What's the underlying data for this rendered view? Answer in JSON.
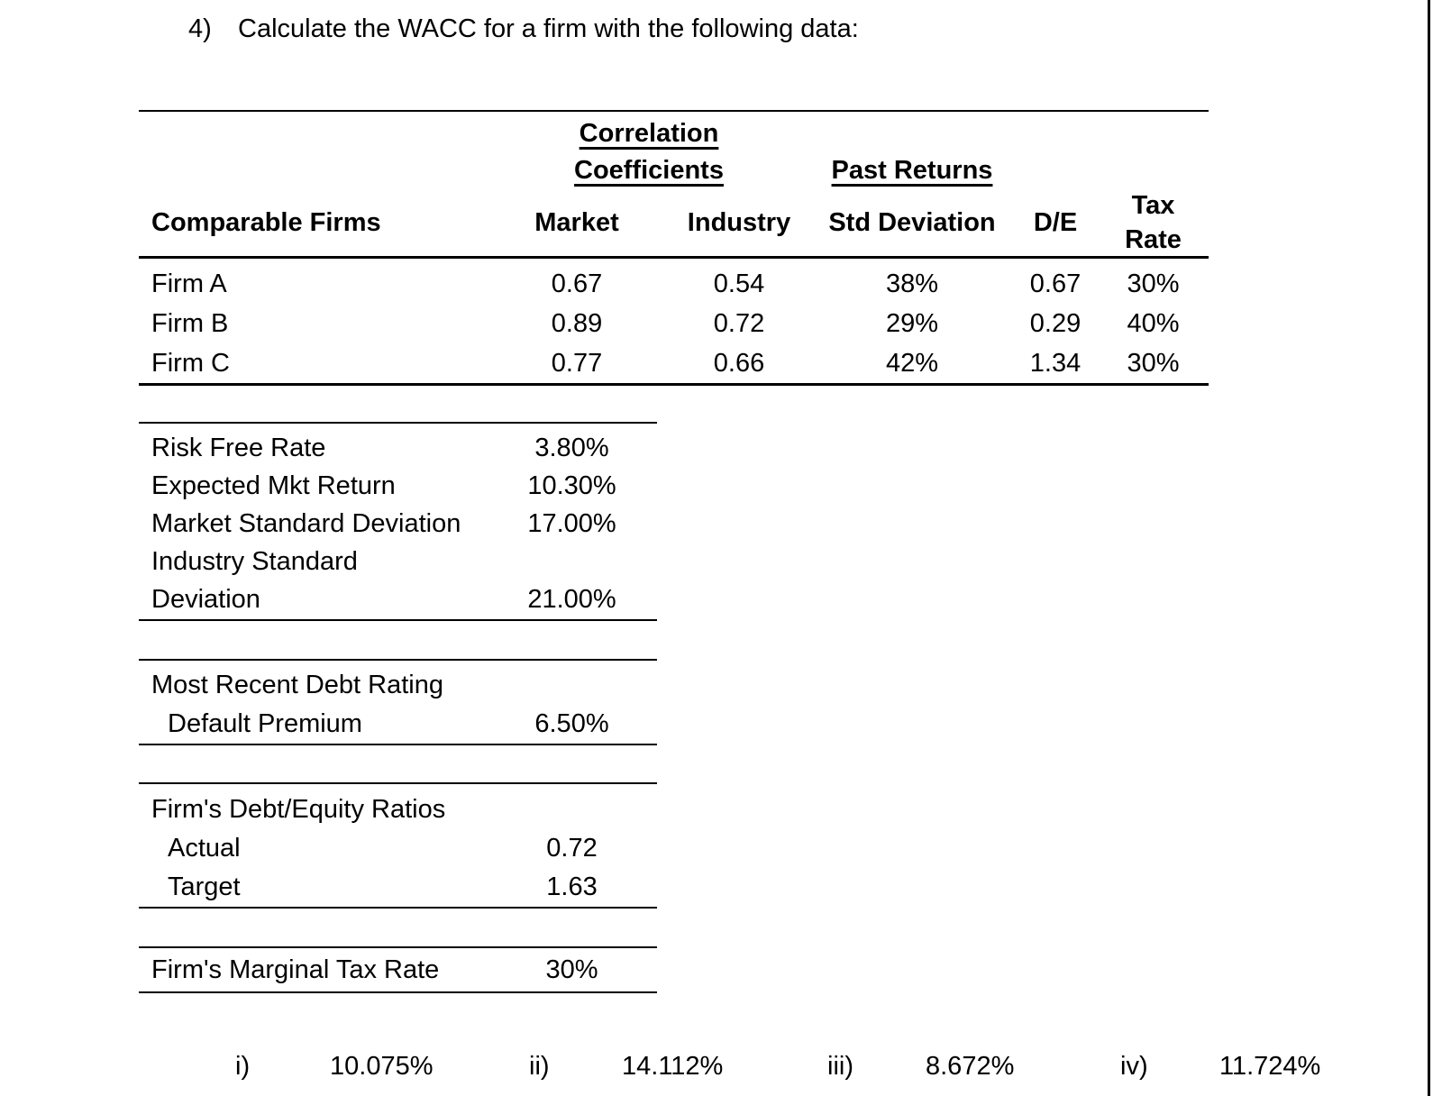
{
  "colors": {
    "text": "#000000",
    "background": "#ffffff",
    "rule": "#000000"
  },
  "title": {
    "number": "4)",
    "text": "Calculate the WACC for a firm with the following data:"
  },
  "main_table": {
    "group_headers": {
      "correlation_line1": "Correlation",
      "correlation_line2": "Coefficients",
      "past_returns": "Past Returns"
    },
    "columns": {
      "firms": "Comparable Firms",
      "market": "Market",
      "industry": "Industry",
      "std_deviation": "Std Deviation",
      "de": "D/E",
      "tax_line1": "Tax",
      "tax_line2": "Rate"
    },
    "rows": [
      {
        "name": "Firm A",
        "market": "0.67",
        "industry": "0.54",
        "std_deviation": "38%",
        "de": "0.67",
        "tax_rate": "30%"
      },
      {
        "name": "Firm B",
        "market": "0.89",
        "industry": "0.72",
        "std_deviation": "29%",
        "de": "0.29",
        "tax_rate": "40%"
      },
      {
        "name": "Firm C",
        "market": "0.77",
        "industry": "0.66",
        "std_deviation": "42%",
        "de": "1.34",
        "tax_rate": "30%"
      }
    ]
  },
  "rates_table": {
    "rows": [
      {
        "label": "Risk Free Rate",
        "value": "3.80%"
      },
      {
        "label": "Expected Mkt Return",
        "value": "10.30%"
      },
      {
        "label": "Market Standard Deviation",
        "value": "17.00%"
      },
      {
        "label": "Industry Standard",
        "value": ""
      },
      {
        "label": "Deviation",
        "value": "21.00%"
      }
    ]
  },
  "debt_rating_table": {
    "rows": [
      {
        "label": "Most Recent Debt Rating",
        "value": ""
      },
      {
        "label": "Default Premium",
        "value": "6.50%"
      }
    ]
  },
  "debt_equity_table": {
    "rows": [
      {
        "label": "Firm's Debt/Equity Ratios",
        "value": ""
      },
      {
        "label": "Actual",
        "value": "0.72"
      },
      {
        "label": "Target",
        "value": "1.63"
      }
    ]
  },
  "marginal_tax_table": {
    "rows": [
      {
        "label": "Firm's Marginal Tax Rate",
        "value": "30%"
      }
    ]
  },
  "answers": [
    {
      "num": "i)",
      "value": "10.075%"
    },
    {
      "num": "ii)",
      "value": "14.112%"
    },
    {
      "num": "iii)",
      "value": "8.672%"
    },
    {
      "num": "iv)",
      "value": "11.724%"
    }
  ]
}
